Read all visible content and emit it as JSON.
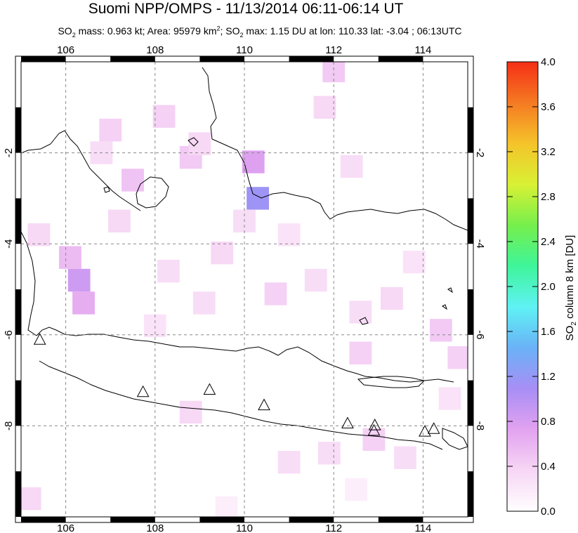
{
  "title": "Suomi NPP/OMPS - 11/13/2014 06:11-06:14 UT",
  "subtitle": {
    "so2_prefix": "SO",
    "so2_sub": "2",
    "mass_part": " mass: 0.963 kt; Area: 95979 km",
    "area_sup": "2",
    "sep": "; SO",
    "max_sub": "2",
    "max_part": " max: 1.15 DU at lon: 110.33 lat: -3.04 ; 06:13UTC"
  },
  "colorbar": {
    "label_prefix": "SO",
    "label_sub": "2",
    "label_suffix": " column 8 km [DU]",
    "ticks": [
      "0.0",
      "0.4",
      "0.8",
      "1.2",
      "1.6",
      "2.0",
      "2.4",
      "2.8",
      "3.2",
      "3.6",
      "4.0"
    ],
    "colors": [
      "#ffffff",
      "#f7d6f5",
      "#e2a2f0",
      "#a88ef5",
      "#6ab2f7",
      "#5ff2f4",
      "#3ef59a",
      "#76ef4c",
      "#d9f134",
      "#f5c32a",
      "#f57a22",
      "#f52f16"
    ]
  },
  "chart_data": {
    "type": "heatmap",
    "xlim": [
      105,
      115
    ],
    "ylim": [
      -10,
      0
    ],
    "x_ticks": [
      "106",
      "108",
      "110",
      "112",
      "114"
    ],
    "y_ticks": [
      "-2",
      "-4",
      "-6",
      "-8"
    ],
    "grid": true,
    "volcano_markers": [
      {
        "lon": 105.42,
        "lat": -6.1
      },
      {
        "lon": 107.73,
        "lat": -7.25
      },
      {
        "lon": 109.22,
        "lat": -7.2
      },
      {
        "lon": 110.44,
        "lat": -7.54
      },
      {
        "lon": 112.31,
        "lat": -7.94
      },
      {
        "lon": 112.92,
        "lat": -7.98
      },
      {
        "lon": 112.9,
        "lat": -8.1
      },
      {
        "lon": 114.04,
        "lat": -8.12
      },
      {
        "lon": 114.24,
        "lat": -8.06
      }
    ],
    "so2_cells_du": [
      {
        "lon": 110.3,
        "lat": -3.0,
        "value": 1.15
      },
      {
        "lon": 110.2,
        "lat": -2.2,
        "value": 0.75
      },
      {
        "lon": 106.3,
        "lat": -4.8,
        "value": 0.85
      },
      {
        "lon": 106.4,
        "lat": -5.3,
        "value": 0.65
      },
      {
        "lon": 106.1,
        "lat": -4.3,
        "value": 0.55
      },
      {
        "lon": 107.5,
        "lat": -2.6,
        "value": 0.5
      },
      {
        "lon": 108.8,
        "lat": -2.1,
        "value": 0.45
      },
      {
        "lon": 107.0,
        "lat": -1.5,
        "value": 0.4
      },
      {
        "lon": 108.2,
        "lat": -1.2,
        "value": 0.4
      },
      {
        "lon": 109.0,
        "lat": -1.8,
        "value": 0.35
      },
      {
        "lon": 107.2,
        "lat": -3.5,
        "value": 0.35
      },
      {
        "lon": 108.3,
        "lat": -4.6,
        "value": 0.3
      },
      {
        "lon": 109.5,
        "lat": -4.2,
        "value": 0.35
      },
      {
        "lon": 109.1,
        "lat": -5.3,
        "value": 0.3
      },
      {
        "lon": 110.7,
        "lat": -5.1,
        "value": 0.4
      },
      {
        "lon": 111.6,
        "lat": -4.8,
        "value": 0.3
      },
      {
        "lon": 112.6,
        "lat": -5.5,
        "value": 0.3
      },
      {
        "lon": 113.3,
        "lat": -5.2,
        "value": 0.35
      },
      {
        "lon": 114.4,
        "lat": -5.9,
        "value": 0.45
      },
      {
        "lon": 114.8,
        "lat": -6.5,
        "value": 0.4
      },
      {
        "lon": 112.6,
        "lat": -6.4,
        "value": 0.4
      },
      {
        "lon": 112.0,
        "lat": -0.2,
        "value": 0.45
      },
      {
        "lon": 111.8,
        "lat": -1.0,
        "value": 0.35
      },
      {
        "lon": 112.4,
        "lat": -2.3,
        "value": 0.3
      },
      {
        "lon": 105.4,
        "lat": -3.8,
        "value": 0.35
      },
      {
        "lon": 105.2,
        "lat": -9.6,
        "value": 0.35
      },
      {
        "lon": 111.9,
        "lat": -8.6,
        "value": 0.3
      },
      {
        "lon": 112.9,
        "lat": -8.3,
        "value": 0.4
      },
      {
        "lon": 113.6,
        "lat": -8.7,
        "value": 0.3
      },
      {
        "lon": 111.0,
        "lat": -8.8,
        "value": 0.3
      },
      {
        "lon": 108.8,
        "lat": -7.7,
        "value": 0.35
      },
      {
        "lon": 106.8,
        "lat": -2.0,
        "value": 0.3
      },
      {
        "lon": 110.0,
        "lat": -3.5,
        "value": 0.3
      },
      {
        "lon": 111.0,
        "lat": -3.8,
        "value": 0.25
      },
      {
        "lon": 108.0,
        "lat": -5.8,
        "value": 0.25
      },
      {
        "lon": 113.8,
        "lat": -4.4,
        "value": 0.25
      },
      {
        "lon": 114.6,
        "lat": -7.4,
        "value": 0.25
      },
      {
        "lon": 112.5,
        "lat": -9.4,
        "value": 0.15
      },
      {
        "lon": 109.6,
        "lat": -9.8,
        "value": 0.15
      }
    ]
  }
}
